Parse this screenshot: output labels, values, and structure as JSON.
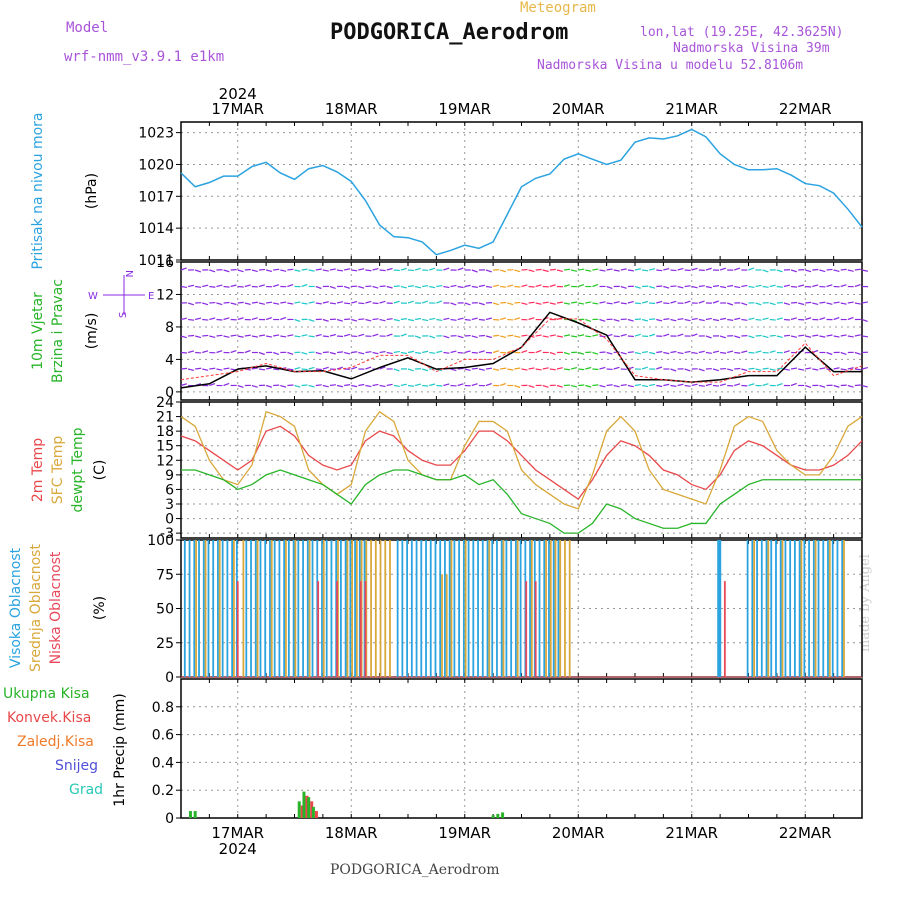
{
  "header": {
    "model_label": "Model",
    "model_name": "wrf-nmm_v3.9.1 e1km",
    "meteogram_label": "Meteogram",
    "station": "PODGORICA_Aerodrom",
    "lonlat": "lon,lat (19.25E, 42.3625N)",
    "elevation": "Nadmorska Visina 39m",
    "model_elevation": "Nadmorska Visina u modelu 52.8106m"
  },
  "footer": {
    "station": "PODGORICA_Aerodrom",
    "made_by": "made by Angel"
  },
  "colors": {
    "pressure": "#2aa3e0",
    "wind_label": "#28b428",
    "temp_2m": "#e8484a",
    "temp_sfc": "#d9a83a",
    "dewpoint": "#28b428",
    "cloud_high": "#2aa3e0",
    "cloud_mid": "#d9a83a",
    "cloud_low": "#e8485a",
    "precip_total": "#28b428",
    "precip_conv": "#e8484a",
    "precip_frozen": "#f07a28",
    "snow": "#5050d8",
    "hail": "#28c8b4",
    "wind_purple": "#8a2be2",
    "wind_cyan": "#22c8c8"
  },
  "chart_data": [
    {
      "type": "line",
      "name": "pressure",
      "ylabel_left": "Pritisak na nivou mora",
      "ylabel_unit": "(hPa)",
      "ylim": [
        1011,
        1024
      ],
      "yticks": [
        "1011",
        "1014",
        "1017",
        "1020",
        "1023"
      ],
      "top_date_labels": [
        "17MAR",
        "18MAR",
        "19MAR",
        "20MAR",
        "21MAR",
        "22MAR"
      ],
      "top_year_label": "2024",
      "x_hours": [
        0,
        3,
        6,
        9,
        12,
        15,
        18,
        21,
        24,
        27,
        30,
        33,
        36,
        39,
        42,
        45,
        48,
        51,
        54,
        57,
        60,
        63,
        66,
        69,
        72,
        75,
        78,
        81,
        84,
        87,
        90,
        93,
        96,
        99,
        102,
        105,
        108,
        111,
        114,
        117,
        120,
        123,
        126,
        129,
        132,
        135,
        138,
        141,
        144
      ],
      "values": [
        1019.2,
        1017.9,
        1018.3,
        1018.9,
        1018.9,
        1019.8,
        1020.2,
        1019.2,
        1018.6,
        1019.6,
        1019.9,
        1019.3,
        1018.4,
        1016.6,
        1014.3,
        1013.2,
        1013.1,
        1012.7,
        1011.5,
        1011.9,
        1012.4,
        1012.1,
        1012.7,
        1015.3,
        1017.9,
        1018.7,
        1019.1,
        1020.5,
        1021.0,
        1020.5,
        1020.0,
        1020.4,
        1022.1,
        1022.5,
        1022.4,
        1022.7,
        1023.3,
        1022.6,
        1021.0,
        1020.0,
        1019.5,
        1019.5,
        1019.6,
        1019.0,
        1018.2,
        1018.0,
        1017.3,
        1015.8,
        1014.1
      ],
      "grid": true
    },
    {
      "type": "line",
      "name": "wind",
      "ylabel_left1": "10m Vjetar",
      "ylabel_left2": "Brzina i Pravac",
      "ylabel_unit": "(m/s)",
      "ylim": [
        -1,
        16
      ],
      "yticks": [
        "0",
        "4",
        "8",
        "12",
        "16"
      ],
      "compass_w": "W",
      "compass_e": "E",
      "compass_n": "N",
      "compass_s": "S",
      "x_hours": [
        0,
        6,
        12,
        18,
        24,
        30,
        36,
        42,
        48,
        54,
        60,
        66,
        72,
        78,
        84,
        90,
        96,
        102,
        108,
        114,
        120,
        126,
        132,
        138,
        144
      ],
      "speed": [
        0.5,
        1.0,
        2.8,
        3.2,
        2.5,
        2.6,
        1.6,
        3.0,
        4.2,
        2.8,
        3.0,
        3.5,
        5.5,
        9.8,
        8.5,
        7.0,
        1.5,
        1.5,
        1.2,
        1.5,
        2.0,
        2.0,
        5.5,
        2.5,
        2.5
      ],
      "gust": [
        1.5,
        2.0,
        2.5,
        3.5,
        2.5,
        2.5,
        3.0,
        4.5,
        4.5,
        2.5,
        4.0,
        4.0,
        5.5,
        9.0,
        9.0,
        6.5,
        2.0,
        1.5,
        1.2,
        1.2,
        2.5,
        2.5,
        6.0,
        2.0,
        3.2
      ],
      "grid": true
    },
    {
      "type": "line",
      "name": "temperature",
      "ylabel_left1": "2m Temp",
      "ylabel_left2": "SFC Temp",
      "ylabel_left3": "dewpt Temp",
      "ylabel_unit": "(C)",
      "ylim": [
        -4,
        24
      ],
      "yticks": [
        "-3",
        "0",
        "3",
        "6",
        "9",
        "12",
        "15",
        "18",
        "21",
        "24"
      ],
      "x_hours": [
        0,
        3,
        6,
        9,
        12,
        15,
        18,
        21,
        24,
        27,
        30,
        33,
        36,
        39,
        42,
        45,
        48,
        51,
        54,
        57,
        60,
        63,
        66,
        69,
        72,
        75,
        78,
        81,
        84,
        87,
        90,
        93,
        96,
        99,
        102,
        105,
        108,
        111,
        114,
        117,
        120,
        123,
        126,
        129,
        132,
        135,
        138,
        141,
        144
      ],
      "series": [
        {
          "name": "2m Temp",
          "values": [
            17,
            16,
            14,
            12,
            10,
            12,
            18,
            19,
            17,
            13,
            11,
            10,
            11,
            16,
            18,
            17,
            14,
            12,
            11,
            11,
            14,
            18,
            18,
            16,
            13,
            10,
            8,
            6,
            4,
            8,
            13,
            16,
            15,
            13,
            10,
            9,
            7,
            6,
            9,
            14,
            16,
            15,
            13,
            11,
            10,
            10,
            11,
            13,
            16
          ]
        },
        {
          "name": "SFC Temp",
          "values": [
            21,
            19,
            12,
            8,
            7,
            11,
            22,
            21,
            19,
            10,
            7,
            5,
            7,
            18,
            22,
            20,
            12,
            9,
            8,
            8,
            15,
            20,
            20,
            18,
            10,
            7,
            5,
            3,
            2,
            9,
            18,
            21,
            18,
            10,
            6,
            5,
            4,
            3,
            10,
            19,
            21,
            20,
            14,
            11,
            9,
            9,
            13,
            19,
            21
          ]
        },
        {
          "name": "dewpt Temp",
          "values": [
            10,
            10,
            9,
            8,
            6,
            7,
            9,
            10,
            9,
            8,
            7,
            5,
            3,
            7,
            9,
            10,
            10,
            9,
            8,
            8,
            9,
            7,
            8,
            5,
            1,
            0,
            -1,
            -3,
            -3,
            -1,
            3,
            2,
            0,
            -1,
            -2,
            -2,
            -1,
            -1,
            3,
            5,
            7,
            8,
            8,
            8,
            8,
            8,
            8,
            8,
            8
          ]
        }
      ],
      "grid": true
    },
    {
      "type": "bar",
      "name": "cloud",
      "ylabel_left1": "Visoka Oblacnost",
      "ylabel_left2": "Srednja Oblacnost",
      "ylabel_left3": "Niska Oblacnost",
      "ylabel_unit": "(%)",
      "ylim": [
        0,
        100
      ],
      "yticks": [
        "0",
        "25",
        "50",
        "75",
        "100"
      ],
      "bars": [
        {
          "layer": "high",
          "x": [
            1,
            2,
            3,
            4,
            5,
            6,
            7,
            8,
            9,
            10,
            11,
            12,
            14,
            15,
            16,
            17,
            18,
            19,
            20,
            21,
            22,
            23,
            24,
            25,
            26,
            27,
            28,
            29,
            30,
            31,
            32,
            33,
            34,
            35,
            36,
            37,
            38,
            39,
            46,
            47,
            48,
            49,
            50,
            51,
            52,
            53,
            54,
            55,
            56,
            57,
            58,
            59,
            60,
            61,
            62,
            63,
            64,
            65,
            66,
            67,
            68,
            69,
            70,
            71,
            72,
            73,
            74,
            75,
            76,
            77,
            78,
            79,
            80,
            114,
            120,
            121,
            122,
            123,
            124,
            125,
            126,
            127,
            128,
            129,
            130,
            131,
            132,
            133,
            134,
            135,
            136,
            137,
            138,
            139,
            140
          ],
          "value": 100
        },
        {
          "layer": "mid",
          "x": [
            3,
            5,
            8,
            11,
            13,
            16,
            19,
            22,
            24,
            27,
            30,
            33,
            35,
            36,
            37,
            38,
            39,
            40,
            41,
            42,
            43,
            44,
            57,
            60,
            65,
            68,
            71,
            74,
            77,
            78,
            79,
            80,
            81,
            82,
            121,
            124,
            127,
            131,
            134,
            137,
            140
          ],
          "value": 100
        },
        {
          "layer": "mid",
          "x": [
            55,
            56
          ],
          "value": 75
        },
        {
          "layer": "low",
          "x": [
            12,
            29,
            33,
            38,
            39,
            73,
            75,
            115
          ],
          "value": 70
        }
      ],
      "grid": true
    },
    {
      "type": "bar",
      "name": "precip",
      "legend": [
        "Ukupna Kisa",
        "Konvek.Kisa",
        "Zaledj.Kisa",
        "Snijeg",
        "Grad"
      ],
      "ylabel_unit": "1hr Precip (mm)",
      "ylim": [
        0,
        1.0
      ],
      "yticks": [
        "0",
        "0.2",
        "0.4",
        "0.6",
        "0.8"
      ],
      "bottom_date_labels": [
        "17MAR",
        "18MAR",
        "19MAR",
        "20MAR",
        "21MAR",
        "22MAR"
      ],
      "bottom_year_label": "2024",
      "x_hours": [
        2,
        3,
        25,
        26,
        27,
        28,
        66,
        67,
        68
      ],
      "total": [
        0.05,
        0.05,
        0.12,
        0.19,
        0.15,
        0.08,
        0.02,
        0.03,
        0.04
      ],
      "conv": [
        0,
        0,
        0.09,
        0.16,
        0.12,
        0.05,
        0,
        0,
        0
      ],
      "grid": true
    }
  ]
}
